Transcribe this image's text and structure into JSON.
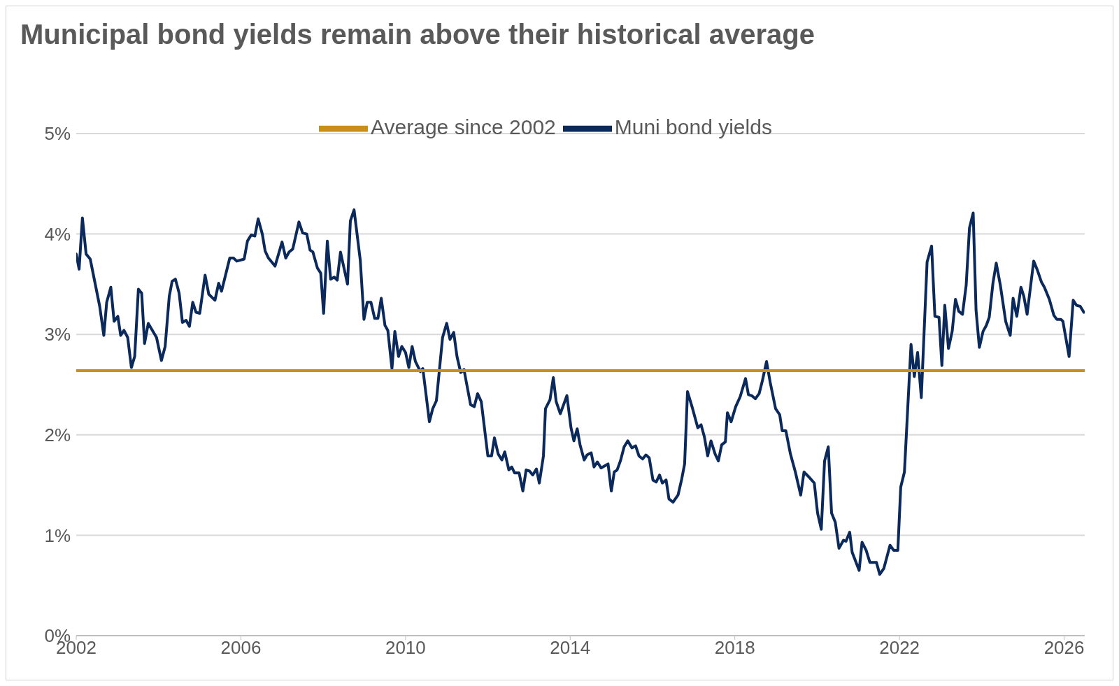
{
  "chart_data": {
    "type": "line",
    "title": "Municipal bond yields remain above their historical average",
    "xlim": [
      2002,
      2026.5
    ],
    "xticks": [
      2002,
      2006,
      2010,
      2014,
      2018,
      2022,
      2026
    ],
    "ylim": [
      0,
      5
    ],
    "yticks": [
      {
        "value": 0,
        "label": "0%"
      },
      {
        "value": 1,
        "label": "1%"
      },
      {
        "value": 2,
        "label": "2%"
      },
      {
        "value": 3,
        "label": "3%"
      },
      {
        "value": 4,
        "label": "4%"
      },
      {
        "value": 5,
        "label": "5%"
      }
    ],
    "grid": "y",
    "legend": "top",
    "marker": "none",
    "line_style": "solid",
    "series": [
      {
        "name": "Muni bond yields",
        "color": "#0b2a5b",
        "x": [
          2002.0,
          2002.07,
          2002.15,
          2002.24,
          2002.34,
          2002.57,
          2002.67,
          2002.74,
          2002.84,
          2002.92,
          2003.01,
          2003.08,
          2003.16,
          2003.25,
          2003.34,
          2003.42,
          2003.51,
          2003.59,
          2003.66,
          2003.75,
          2003.95,
          2004.07,
          2004.16,
          2004.26,
          2004.33,
          2004.41,
          2004.5,
          2004.58,
          2004.67,
          2004.75,
          2004.83,
          2004.91,
          2005.0,
          2005.13,
          2005.22,
          2005.37,
          2005.46,
          2005.53,
          2005.73,
          2005.82,
          2005.9,
          2006.08,
          2006.16,
          2006.25,
          2006.34,
          2006.42,
          2006.52,
          2006.59,
          2006.67,
          2006.83,
          2007.0,
          2007.09,
          2007.17,
          2007.26,
          2007.41,
          2007.5,
          2007.6,
          2007.68,
          2007.75,
          2007.86,
          2007.94,
          2008.01,
          2008.1,
          2008.18,
          2008.27,
          2008.34,
          2008.42,
          2008.59,
          2008.66,
          2008.75,
          2008.9,
          2008.99,
          2009.07,
          2009.16,
          2009.25,
          2009.33,
          2009.41,
          2009.5,
          2009.57,
          2009.67,
          2009.74,
          2009.83,
          2009.91,
          2010.0,
          2010.08,
          2010.16,
          2010.24,
          2010.36,
          2010.42,
          2010.58,
          2010.66,
          2010.75,
          2010.9,
          2011.0,
          2011.08,
          2011.17,
          2011.25,
          2011.34,
          2011.42,
          2011.47,
          2011.58,
          2011.67,
          2011.75,
          2011.84,
          2012.0,
          2012.09,
          2012.16,
          2012.25,
          2012.34,
          2012.41,
          2012.51,
          2012.58,
          2012.65,
          2012.76,
          2012.85,
          2012.93,
          2013.01,
          2013.09,
          2013.18,
          2013.25,
          2013.35,
          2013.4,
          2013.51,
          2013.59,
          2013.66,
          2013.76,
          2013.92,
          2014.02,
          2014.09,
          2014.17,
          2014.24,
          2014.34,
          2014.41,
          2014.51,
          2014.58,
          2014.66,
          2014.75,
          2014.92,
          2015.0,
          2015.07,
          2015.14,
          2015.22,
          2015.31,
          2015.4,
          2015.5,
          2015.59,
          2015.67,
          2015.76,
          2015.84,
          2015.92,
          2016.01,
          2016.09,
          2016.17,
          2016.24,
          2016.33,
          2016.4,
          2016.5,
          2016.62,
          2016.71,
          2016.78,
          2016.85,
          2016.96,
          2017.1,
          2017.18,
          2017.26,
          2017.34,
          2017.42,
          2017.52,
          2017.6,
          2017.68,
          2017.77,
          2017.82,
          2017.91,
          2018.02,
          2018.13,
          2018.26,
          2018.33,
          2018.41,
          2018.5,
          2018.59,
          2018.67,
          2018.77,
          2018.86,
          2018.99,
          2019.09,
          2019.15,
          2019.24,
          2019.35,
          2019.47,
          2019.6,
          2019.68,
          2019.8,
          2019.93,
          2020.01,
          2020.1,
          2020.18,
          2020.27,
          2020.35,
          2020.44,
          2020.53,
          2020.64,
          2020.7,
          2020.79,
          2020.85,
          2021.02,
          2021.09,
          2021.19,
          2021.28,
          2021.44,
          2021.52,
          2021.62,
          2021.77,
          2021.86,
          2021.96,
          2022.03,
          2022.12,
          2022.28,
          2022.36,
          2022.44,
          2022.53,
          2022.67,
          2022.78,
          2022.86,
          2022.96,
          2023.03,
          2023.1,
          2023.19,
          2023.28,
          2023.36,
          2023.44,
          2023.53,
          2023.62,
          2023.7,
          2023.79,
          2023.86,
          2023.94,
          2024.03,
          2024.11,
          2024.18,
          2024.27,
          2024.35,
          2024.45,
          2024.58,
          2024.69,
          2024.76,
          2024.85,
          2024.95,
          2025.02,
          2025.1,
          2025.26,
          2025.35,
          2025.45,
          2025.52,
          2025.64,
          2025.75,
          2025.82,
          2025.92,
          2025.97,
          2026.12,
          2026.22,
          2026.3,
          2026.39,
          2026.48
        ],
        "values": [
          3.8,
          3.65,
          4.16,
          3.8,
          3.75,
          3.28,
          2.99,
          3.32,
          3.47,
          3.13,
          3.18,
          2.99,
          3.04,
          2.97,
          2.67,
          2.78,
          3.45,
          3.41,
          2.91,
          3.11,
          2.97,
          2.74,
          2.88,
          3.38,
          3.53,
          3.55,
          3.41,
          3.12,
          3.14,
          3.08,
          3.32,
          3.22,
          3.21,
          3.59,
          3.4,
          3.34,
          3.51,
          3.43,
          3.76,
          3.76,
          3.73,
          3.75,
          3.93,
          3.99,
          3.98,
          4.15,
          4.0,
          3.83,
          3.76,
          3.68,
          3.92,
          3.76,
          3.82,
          3.85,
          4.12,
          4.01,
          4.0,
          3.84,
          3.82,
          3.66,
          3.61,
          3.21,
          3.93,
          3.55,
          3.57,
          3.54,
          3.82,
          3.5,
          4.13,
          4.24,
          3.74,
          3.15,
          3.32,
          3.32,
          3.16,
          3.16,
          3.36,
          3.09,
          3.04,
          2.66,
          3.03,
          2.78,
          2.88,
          2.82,
          2.67,
          2.88,
          2.73,
          2.63,
          2.66,
          2.13,
          2.26,
          2.34,
          2.97,
          3.11,
          2.95,
          3.02,
          2.78,
          2.62,
          2.65,
          2.54,
          2.3,
          2.28,
          2.41,
          2.33,
          1.79,
          1.79,
          1.97,
          1.81,
          1.75,
          1.83,
          1.65,
          1.68,
          1.62,
          1.62,
          1.44,
          1.65,
          1.64,
          1.6,
          1.66,
          1.52,
          1.79,
          2.26,
          2.35,
          2.57,
          2.33,
          2.21,
          2.39,
          2.07,
          1.94,
          2.06,
          1.9,
          1.75,
          1.8,
          1.82,
          1.68,
          1.73,
          1.67,
          1.71,
          1.44,
          1.63,
          1.65,
          1.74,
          1.88,
          1.94,
          1.87,
          1.89,
          1.79,
          1.76,
          1.8,
          1.77,
          1.55,
          1.53,
          1.6,
          1.52,
          1.55,
          1.36,
          1.33,
          1.4,
          1.56,
          1.71,
          2.43,
          2.28,
          2.07,
          2.1,
          1.98,
          1.79,
          1.94,
          1.81,
          1.74,
          1.9,
          1.93,
          2.22,
          2.13,
          2.28,
          2.38,
          2.56,
          2.4,
          2.39,
          2.36,
          2.41,
          2.54,
          2.73,
          2.52,
          2.26,
          2.2,
          2.04,
          2.04,
          1.81,
          1.63,
          1.4,
          1.63,
          1.58,
          1.52,
          1.22,
          1.06,
          1.74,
          1.88,
          1.22,
          1.13,
          0.87,
          0.95,
          0.94,
          1.03,
          0.83,
          0.65,
          0.93,
          0.85,
          0.73,
          0.73,
          0.61,
          0.67,
          0.9,
          0.85,
          0.85,
          1.48,
          1.63,
          2.9,
          2.58,
          2.82,
          2.37,
          3.72,
          3.88,
          3.18,
          3.17,
          2.69,
          3.29,
          2.86,
          3.03,
          3.35,
          3.23,
          3.2,
          3.49,
          4.06,
          4.21,
          3.24,
          2.87,
          3.03,
          3.09,
          3.17,
          3.51,
          3.71,
          3.49,
          3.13,
          2.99,
          3.36,
          3.18,
          3.47,
          3.38,
          3.2,
          3.73,
          3.64,
          3.52,
          3.47,
          3.35,
          3.19,
          3.15,
          3.15,
          3.13,
          2.78,
          3.34,
          3.29,
          3.28,
          3.22
        ]
      },
      {
        "name": "Average since 2002",
        "color": "#c8901b",
        "x": [
          2002,
          2026.5
        ],
        "values": [
          2.64,
          2.64
        ]
      }
    ]
  }
}
